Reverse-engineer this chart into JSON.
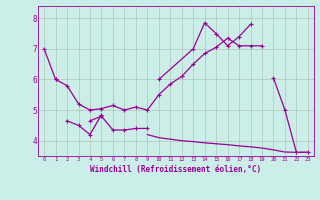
{
  "background_color": "#cceee8",
  "line_color": "#990099",
  "grid_color": "#aabbaa",
  "xlabel": "Windchill (Refroidissement éolien,°C)",
  "xlim": [
    -0.5,
    23.5
  ],
  "ylim": [
    3.5,
    8.4
  ],
  "yticks": [
    4,
    5,
    6,
    7,
    8
  ],
  "xticks": [
    0,
    1,
    2,
    3,
    4,
    5,
    6,
    7,
    8,
    9,
    10,
    11,
    12,
    13,
    14,
    15,
    16,
    17,
    18,
    19,
    20,
    21,
    22,
    23
  ],
  "line1_x": [
    0,
    1
  ],
  "line1_y": [
    7.0,
    6.0
  ],
  "line2_x": [
    1,
    2,
    3,
    4,
    5,
    6,
    7,
    8,
    9,
    10,
    11,
    12,
    13,
    14,
    15,
    16,
    17,
    18,
    19
  ],
  "line2_y": [
    6.0,
    5.8,
    5.2,
    5.0,
    5.05,
    5.15,
    5.0,
    5.1,
    5.0,
    5.5,
    5.85,
    6.1,
    6.5,
    6.85,
    7.05,
    7.35,
    7.1,
    7.1,
    7.1
  ],
  "line3_x": [
    2,
    3,
    4,
    5
  ],
  "line3_y": [
    4.65,
    4.5,
    4.2,
    4.85
  ],
  "line4_x": [
    4,
    5,
    6,
    7,
    8,
    9
  ],
  "line4_y": [
    4.65,
    4.8,
    4.35,
    4.35,
    4.4,
    4.4
  ],
  "line5_x": [
    10,
    13,
    14,
    15,
    16,
    17,
    18
  ],
  "line5_y": [
    6.0,
    7.0,
    7.85,
    7.5,
    7.1,
    7.4,
    7.8
  ],
  "line6_x": [
    9,
    10,
    11,
    12,
    13,
    14,
    15,
    16,
    17,
    18,
    19,
    20,
    21,
    22,
    23
  ],
  "line6_y": [
    4.2,
    4.1,
    4.05,
    4.0,
    3.97,
    3.93,
    3.9,
    3.87,
    3.83,
    3.8,
    3.76,
    3.7,
    3.63,
    3.62,
    3.62
  ],
  "line7_x": [
    20,
    21,
    22,
    23
  ],
  "line7_y": [
    6.05,
    5.0,
    3.62,
    3.62
  ]
}
